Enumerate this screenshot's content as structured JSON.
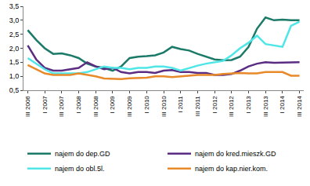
{
  "chart_data": {
    "type": "line",
    "categories": [
      "III 2006",
      null,
      "I 2007",
      null,
      "III 2007",
      null,
      "I 2008",
      null,
      "III 2008",
      null,
      "I 2009",
      null,
      "III 2009",
      null,
      "I 2010",
      null,
      "III 2010",
      null,
      "I 2011",
      null,
      "III 2011",
      null,
      "I 2012",
      null,
      "III 2012",
      null,
      "I 2013",
      null,
      "III 2013",
      null,
      "I 2014",
      null,
      "III 2014"
    ],
    "series": [
      {
        "name": "najem do dep.GD",
        "color": "#1b7a68",
        "values": [
          2.65,
          2.3,
          2.0,
          1.8,
          1.82,
          1.75,
          1.65,
          1.45,
          1.35,
          1.3,
          1.2,
          1.35,
          1.65,
          1.7,
          1.72,
          1.75,
          1.85,
          2.05,
          1.97,
          1.92,
          1.8,
          1.7,
          1.6,
          1.57,
          1.58,
          1.7,
          2.05,
          2.7,
          3.1,
          3.0,
          3.02,
          3.0,
          3.0
        ]
      },
      {
        "name": "najem do kred.mieszk.GD",
        "color": "#5b2d82",
        "values": [
          2.1,
          1.6,
          1.3,
          1.2,
          1.2,
          1.25,
          1.3,
          1.5,
          1.35,
          1.25,
          1.3,
          1.15,
          1.1,
          1.15,
          1.15,
          1.12,
          1.2,
          1.22,
          1.15,
          1.15,
          1.12,
          1.12,
          1.05,
          1.05,
          1.08,
          1.2,
          1.35,
          1.45,
          1.5,
          1.48,
          1.48,
          1.48,
          1.5
        ]
      },
      {
        "name": "najem do obl.5l.",
        "color": "#4ee6e6",
        "values": [
          1.65,
          1.45,
          1.25,
          1.1,
          1.1,
          1.1,
          1.1,
          1.15,
          1.25,
          1.35,
          1.3,
          1.3,
          1.25,
          1.3,
          1.3,
          1.35,
          1.35,
          1.3,
          1.2,
          1.3,
          1.38,
          1.45,
          1.5,
          1.55,
          1.75,
          2.0,
          2.2,
          2.45,
          2.15,
          2.1,
          2.05,
          2.8,
          2.95
        ]
      },
      {
        "name": "najem do kap.nier.kom.",
        "color": "#e8892a",
        "values": [
          1.4,
          1.25,
          1.1,
          1.05,
          1.05,
          1.05,
          1.1,
          1.05,
          1.0,
          0.92,
          0.92,
          0.9,
          0.93,
          0.95,
          0.95,
          1.0,
          1.0,
          0.97,
          1.0,
          1.02,
          1.05,
          1.05,
          1.05,
          1.08,
          1.1,
          1.12,
          1.1,
          1.1,
          1.15,
          1.15,
          1.15,
          1.02,
          1.02
        ]
      }
    ],
    "ylim": [
      0.5,
      3.5
    ],
    "yticks": [
      {
        "value": 0.5,
        "label": "0,5"
      },
      {
        "value": 1.0,
        "label": "1,0"
      },
      {
        "value": 1.5,
        "label": "1,5"
      },
      {
        "value": 2.0,
        "label": "2,0"
      },
      {
        "value": 2.5,
        "label": "2,5"
      },
      {
        "value": 3.0,
        "label": "3,0"
      },
      {
        "value": 3.5,
        "label": "3,5"
      }
    ],
    "grid": false,
    "legend": "bottom"
  }
}
